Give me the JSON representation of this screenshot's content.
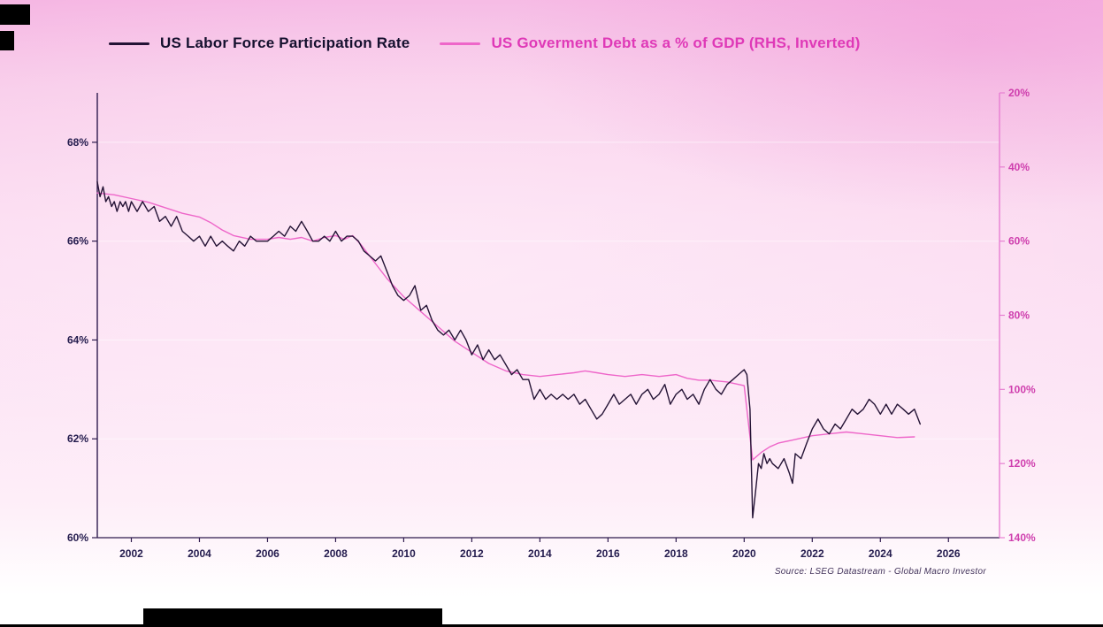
{
  "legend": {
    "items": [
      {
        "label": "US Labor Force Participation Rate",
        "line_color": "#241335",
        "text_color": "#15102e"
      },
      {
        "label": "US Goverment Debt as a % of GDP (RHS, Inverted)",
        "line_color": "#ee66c9",
        "text_color": "#df39b7"
      }
    ]
  },
  "chart_data": {
    "type": "line",
    "title": "",
    "source": "Source: LSEG Datastream - Global Macro Investor",
    "grid": "horizontal-faint",
    "legend_position": "top",
    "axis_colors": {
      "left_axis": "#2e1b4e",
      "right_axis": "#e77fd2",
      "left_label": "#241c4e",
      "right_label": "#cf3fae",
      "x_label": "#241c4e"
    },
    "x_axis": {
      "min": 2001,
      "max": 2027.5,
      "ticks": [
        {
          "v": 2002,
          "label": "2002"
        },
        {
          "v": 2004,
          "label": "2004"
        },
        {
          "v": 2006,
          "label": "2006"
        },
        {
          "v": 2008,
          "label": "2008"
        },
        {
          "v": 2010,
          "label": "2010"
        },
        {
          "v": 2012,
          "label": "2012"
        },
        {
          "v": 2014,
          "label": "2014"
        },
        {
          "v": 2016,
          "label": "2016"
        },
        {
          "v": 2018,
          "label": "2018"
        },
        {
          "v": 2020,
          "label": "2020"
        },
        {
          "v": 2022,
          "label": "2022"
        },
        {
          "v": 2024,
          "label": "2024"
        },
        {
          "v": 2026,
          "label": "2026"
        }
      ]
    },
    "y_left": {
      "min": 60,
      "max": 69,
      "inverted": false,
      "ticks": [
        {
          "v": 68,
          "label": "68%"
        },
        {
          "v": 66,
          "label": "66%"
        },
        {
          "v": 64,
          "label": "64%"
        },
        {
          "v": 62,
          "label": "62%"
        },
        {
          "v": 60,
          "label": "60%"
        }
      ]
    },
    "y_right": {
      "min": 20,
      "max": 140,
      "inverted": true,
      "ticks": [
        {
          "v": 20,
          "label": "20%"
        },
        {
          "v": 40,
          "label": "40%"
        },
        {
          "v": 60,
          "label": "60%"
        },
        {
          "v": 80,
          "label": "80%"
        },
        {
          "v": 100,
          "label": "100%"
        },
        {
          "v": 120,
          "label": "120%"
        },
        {
          "v": 140,
          "label": "140%"
        }
      ]
    },
    "series": [
      {
        "name": "US Goverment Debt as a % of GDP (RHS, Inverted)",
        "axis": "right",
        "color": "#ee66c9",
        "points": [
          [
            2001.0,
            47.0
          ],
          [
            2001.5,
            47.5
          ],
          [
            2002.0,
            48.5
          ],
          [
            2002.5,
            49.5
          ],
          [
            2003.0,
            51.0
          ],
          [
            2003.5,
            52.5
          ],
          [
            2004.0,
            53.5
          ],
          [
            2004.33,
            55.0
          ],
          [
            2004.67,
            57.0
          ],
          [
            2005.0,
            58.5
          ],
          [
            2005.5,
            59.5
          ],
          [
            2006.0,
            59.5
          ],
          [
            2006.33,
            59.0
          ],
          [
            2006.67,
            59.5
          ],
          [
            2007.0,
            59.0
          ],
          [
            2007.33,
            60.0
          ],
          [
            2007.67,
            59.0
          ],
          [
            2008.0,
            58.5
          ],
          [
            2008.25,
            59.5
          ],
          [
            2008.5,
            58.5
          ],
          [
            2008.75,
            61.0
          ],
          [
            2009.0,
            64.0
          ],
          [
            2009.25,
            67.0
          ],
          [
            2009.5,
            70.0
          ],
          [
            2009.75,
            72.5
          ],
          [
            2010.0,
            75.0
          ],
          [
            2010.5,
            79.0
          ],
          [
            2011.0,
            83.0
          ],
          [
            2011.5,
            87.0
          ],
          [
            2012.0,
            90.0
          ],
          [
            2012.5,
            93.0
          ],
          [
            2013.0,
            95.0
          ],
          [
            2013.5,
            96.0
          ],
          [
            2014.0,
            96.5
          ],
          [
            2014.5,
            96.0
          ],
          [
            2015.0,
            95.5
          ],
          [
            2015.33,
            95.0
          ],
          [
            2015.67,
            95.5
          ],
          [
            2016.0,
            96.0
          ],
          [
            2016.5,
            96.5
          ],
          [
            2017.0,
            96.0
          ],
          [
            2017.5,
            96.5
          ],
          [
            2018.0,
            96.0
          ],
          [
            2018.33,
            97.0
          ],
          [
            2018.67,
            97.5
          ],
          [
            2019.0,
            97.5
          ],
          [
            2019.5,
            98.0
          ],
          [
            2020.0,
            99.0
          ],
          [
            2020.25,
            119.0
          ],
          [
            2020.5,
            117.0
          ],
          [
            2020.75,
            115.5
          ],
          [
            2021.0,
            114.5
          ],
          [
            2021.5,
            113.5
          ],
          [
            2022.0,
            112.5
          ],
          [
            2022.5,
            112.0
          ],
          [
            2023.0,
            111.5
          ],
          [
            2023.5,
            112.0
          ],
          [
            2024.0,
            112.5
          ],
          [
            2024.5,
            113.0
          ],
          [
            2025.0,
            112.8
          ]
        ]
      },
      {
        "name": "US Labor Force Participation Rate",
        "axis": "left",
        "color": "#241335",
        "points": [
          [
            2001.0,
            67.2
          ],
          [
            2001.08,
            66.9
          ],
          [
            2001.17,
            67.1
          ],
          [
            2001.25,
            66.8
          ],
          [
            2001.33,
            66.9
          ],
          [
            2001.42,
            66.7
          ],
          [
            2001.5,
            66.8
          ],
          [
            2001.58,
            66.6
          ],
          [
            2001.67,
            66.8
          ],
          [
            2001.75,
            66.7
          ],
          [
            2001.83,
            66.8
          ],
          [
            2001.92,
            66.6
          ],
          [
            2002.0,
            66.8
          ],
          [
            2002.17,
            66.6
          ],
          [
            2002.33,
            66.8
          ],
          [
            2002.5,
            66.6
          ],
          [
            2002.67,
            66.7
          ],
          [
            2002.83,
            66.4
          ],
          [
            2003.0,
            66.5
          ],
          [
            2003.17,
            66.3
          ],
          [
            2003.33,
            66.5
          ],
          [
            2003.5,
            66.2
          ],
          [
            2003.67,
            66.1
          ],
          [
            2003.83,
            66.0
          ],
          [
            2004.0,
            66.1
          ],
          [
            2004.17,
            65.9
          ],
          [
            2004.33,
            66.1
          ],
          [
            2004.5,
            65.9
          ],
          [
            2004.67,
            66.0
          ],
          [
            2004.83,
            65.9
          ],
          [
            2005.0,
            65.8
          ],
          [
            2005.17,
            66.0
          ],
          [
            2005.33,
            65.9
          ],
          [
            2005.5,
            66.1
          ],
          [
            2005.67,
            66.0
          ],
          [
            2005.83,
            66.0
          ],
          [
            2006.0,
            66.0
          ],
          [
            2006.17,
            66.1
          ],
          [
            2006.33,
            66.2
          ],
          [
            2006.5,
            66.1
          ],
          [
            2006.67,
            66.3
          ],
          [
            2006.83,
            66.2
          ],
          [
            2007.0,
            66.4
          ],
          [
            2007.17,
            66.2
          ],
          [
            2007.33,
            66.0
          ],
          [
            2007.5,
            66.0
          ],
          [
            2007.67,
            66.1
          ],
          [
            2007.83,
            66.0
          ],
          [
            2008.0,
            66.2
          ],
          [
            2008.17,
            66.0
          ],
          [
            2008.33,
            66.1
          ],
          [
            2008.5,
            66.1
          ],
          [
            2008.67,
            66.0
          ],
          [
            2008.83,
            65.8
          ],
          [
            2009.0,
            65.7
          ],
          [
            2009.17,
            65.6
          ],
          [
            2009.33,
            65.7
          ],
          [
            2009.5,
            65.4
          ],
          [
            2009.67,
            65.1
          ],
          [
            2009.83,
            64.9
          ],
          [
            2010.0,
            64.8
          ],
          [
            2010.17,
            64.9
          ],
          [
            2010.33,
            65.1
          ],
          [
            2010.5,
            64.6
          ],
          [
            2010.67,
            64.7
          ],
          [
            2010.83,
            64.4
          ],
          [
            2011.0,
            64.2
          ],
          [
            2011.17,
            64.1
          ],
          [
            2011.33,
            64.2
          ],
          [
            2011.5,
            64.0
          ],
          [
            2011.67,
            64.2
          ],
          [
            2011.83,
            64.0
          ],
          [
            2012.0,
            63.7
          ],
          [
            2012.17,
            63.9
          ],
          [
            2012.33,
            63.6
          ],
          [
            2012.5,
            63.8
          ],
          [
            2012.67,
            63.6
          ],
          [
            2012.83,
            63.7
          ],
          [
            2013.0,
            63.5
          ],
          [
            2013.17,
            63.3
          ],
          [
            2013.33,
            63.4
          ],
          [
            2013.5,
            63.2
          ],
          [
            2013.67,
            63.2
          ],
          [
            2013.83,
            62.8
          ],
          [
            2014.0,
            63.0
          ],
          [
            2014.17,
            62.8
          ],
          [
            2014.33,
            62.9
          ],
          [
            2014.5,
            62.8
          ],
          [
            2014.67,
            62.9
          ],
          [
            2014.83,
            62.8
          ],
          [
            2015.0,
            62.9
          ],
          [
            2015.17,
            62.7
          ],
          [
            2015.33,
            62.8
          ],
          [
            2015.5,
            62.6
          ],
          [
            2015.67,
            62.4
          ],
          [
            2015.83,
            62.5
          ],
          [
            2016.0,
            62.7
          ],
          [
            2016.17,
            62.9
          ],
          [
            2016.33,
            62.7
          ],
          [
            2016.5,
            62.8
          ],
          [
            2016.67,
            62.9
          ],
          [
            2016.83,
            62.7
          ],
          [
            2017.0,
            62.9
          ],
          [
            2017.17,
            63.0
          ],
          [
            2017.33,
            62.8
          ],
          [
            2017.5,
            62.9
          ],
          [
            2017.67,
            63.1
          ],
          [
            2017.83,
            62.7
          ],
          [
            2018.0,
            62.9
          ],
          [
            2018.17,
            63.0
          ],
          [
            2018.33,
            62.8
          ],
          [
            2018.5,
            62.9
          ],
          [
            2018.67,
            62.7
          ],
          [
            2018.83,
            63.0
          ],
          [
            2019.0,
            63.2
          ],
          [
            2019.17,
            63.0
          ],
          [
            2019.33,
            62.9
          ],
          [
            2019.5,
            63.1
          ],
          [
            2019.67,
            63.2
          ],
          [
            2019.83,
            63.3
          ],
          [
            2020.0,
            63.4
          ],
          [
            2020.08,
            63.3
          ],
          [
            2020.17,
            62.6
          ],
          [
            2020.25,
            60.4
          ],
          [
            2020.33,
            60.9
          ],
          [
            2020.42,
            61.5
          ],
          [
            2020.5,
            61.4
          ],
          [
            2020.58,
            61.7
          ],
          [
            2020.67,
            61.5
          ],
          [
            2020.75,
            61.6
          ],
          [
            2020.83,
            61.5
          ],
          [
            2021.0,
            61.4
          ],
          [
            2021.17,
            61.6
          ],
          [
            2021.33,
            61.3
          ],
          [
            2021.42,
            61.1
          ],
          [
            2021.5,
            61.7
          ],
          [
            2021.67,
            61.6
          ],
          [
            2021.83,
            61.9
          ],
          [
            2022.0,
            62.2
          ],
          [
            2022.17,
            62.4
          ],
          [
            2022.33,
            62.2
          ],
          [
            2022.5,
            62.1
          ],
          [
            2022.67,
            62.3
          ],
          [
            2022.83,
            62.2
          ],
          [
            2023.0,
            62.4
          ],
          [
            2023.17,
            62.6
          ],
          [
            2023.33,
            62.5
          ],
          [
            2023.5,
            62.6
          ],
          [
            2023.67,
            62.8
          ],
          [
            2023.83,
            62.7
          ],
          [
            2024.0,
            62.5
          ],
          [
            2024.17,
            62.7
          ],
          [
            2024.33,
            62.5
          ],
          [
            2024.5,
            62.7
          ],
          [
            2024.67,
            62.6
          ],
          [
            2024.83,
            62.5
          ],
          [
            2025.0,
            62.6
          ],
          [
            2025.17,
            62.3
          ]
        ]
      }
    ]
  }
}
